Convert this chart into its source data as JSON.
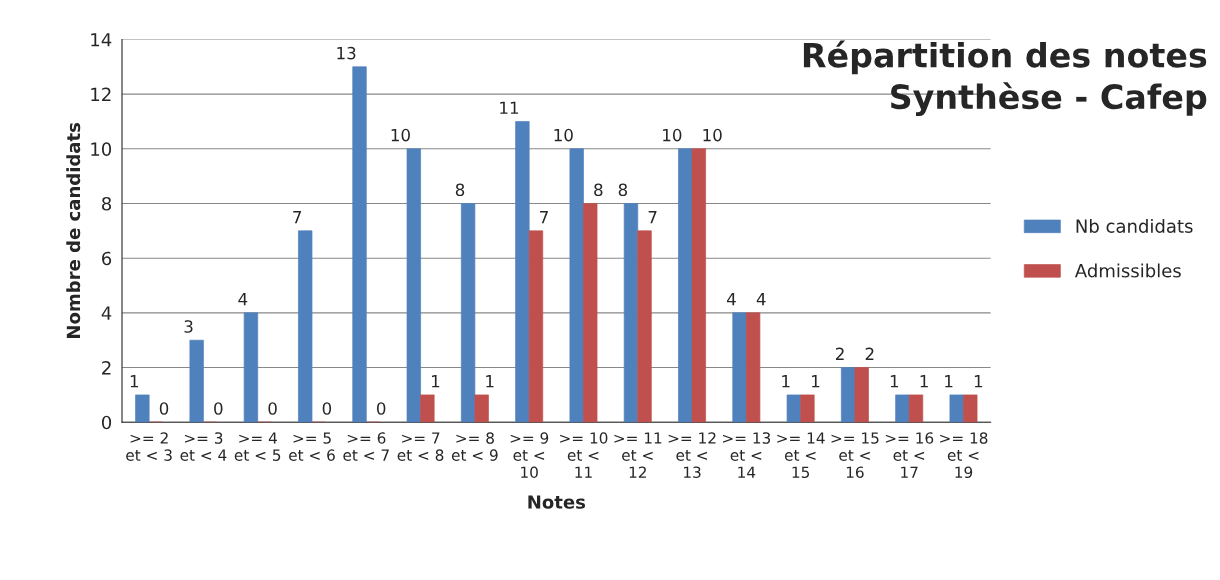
{
  "chart_data": {
    "type": "bar",
    "title": "Répartition des notes\nSynthèse - Cafep",
    "xlabel": "Notes",
    "ylabel": "Nombre de candidats",
    "categories": [
      ">= 2\net < 3",
      ">= 3\net < 4",
      ">= 4\net < 5",
      ">= 5\net < 6",
      ">= 6\net < 7",
      ">= 7\net < 8",
      ">= 8\net < 9",
      ">= 9\net <\n10",
      ">= 10\net <\n11",
      ">= 11\net <\n12",
      ">= 12\net <\n13",
      ">= 13\net <\n14",
      ">= 14\net <\n15",
      ">= 15\net <\n16",
      ">= 16\net <\n17",
      ">= 18\net <\n19"
    ],
    "series": [
      {
        "name": "Nb candidats",
        "color": "#4f81bd",
        "values": [
          1,
          3,
          4,
          7,
          13,
          10,
          8,
          11,
          10,
          8,
          10,
          4,
          1,
          2,
          1,
          1
        ]
      },
      {
        "name": "Admissibles",
        "color": "#c0504d",
        "values": [
          0,
          0,
          0,
          0,
          0,
          1,
          1,
          7,
          8,
          7,
          10,
          4,
          1,
          2,
          1,
          1
        ]
      }
    ],
    "ylim": [
      0,
      14
    ],
    "yticks": [
      0,
      2,
      4,
      6,
      8,
      10,
      12,
      14
    ],
    "grid": "y",
    "legend": "right",
    "data_labels": true
  }
}
